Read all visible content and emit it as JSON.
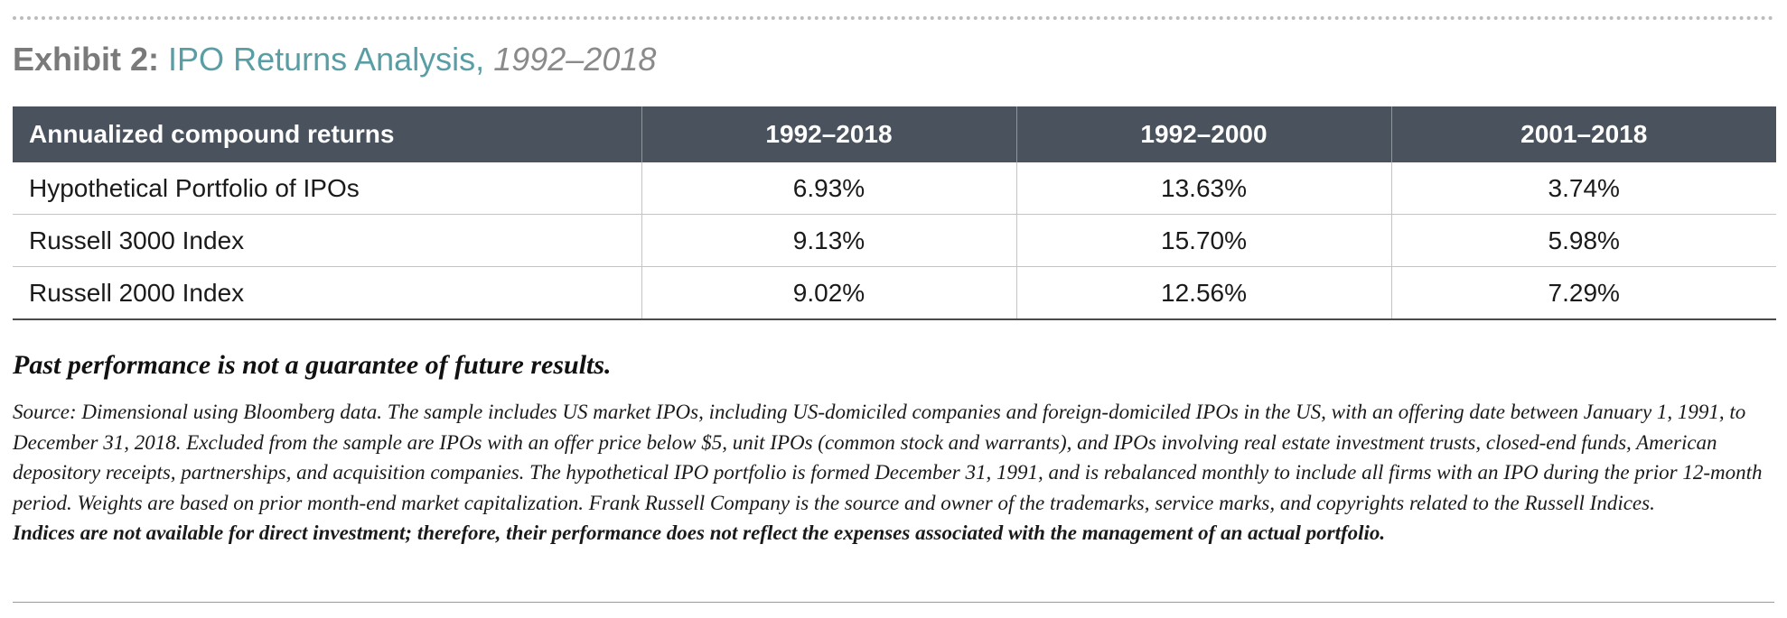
{
  "exhibit": {
    "label": "Exhibit 2:",
    "name": "IPO Returns Analysis,",
    "period": "1992–2018"
  },
  "table": {
    "columns": [
      "Annualized compound returns",
      "1992–2018",
      "1992–2000",
      "2001–2018"
    ],
    "rows": [
      {
        "name": "Hypothetical Portfolio of IPOs",
        "values": [
          "6.93%",
          "13.63%",
          "3.74%"
        ]
      },
      {
        "name": "Russell 3000 Index",
        "values": [
          "9.13%",
          "15.70%",
          "5.98%"
        ]
      },
      {
        "name": "Russell 2000 Index",
        "values": [
          "9.02%",
          "12.56%",
          "7.29%"
        ]
      }
    ]
  },
  "disclaimer": "Past performance is not a guarantee of future results.",
  "source_note": {
    "text": "Source: Dimensional using Bloomberg data. The sample includes US market IPOs, including US-domiciled companies and foreign-domiciled IPOs in the US, with an offering date between January 1, 1991, to December 31, 2018. Excluded from the sample are IPOs with an offer price below $5, unit IPOs (common stock and warrants), and IPOs involving real estate investment trusts, closed-end funds, American depository receipts, partnerships, and acquisition companies. The hypothetical IPO portfolio is formed December 31, 1991, and is rebalanced monthly to include all firms with an IPO during the prior 12-month period. Weights are based on prior month-end market capitalization. Frank Russell Company is the source and owner of the trademarks, service marks, and copyrights related to the Russell Indices.",
    "bold_text": "Indices are not available for direct investment; therefore, their performance does not reflect the expenses associated with the management of an actual portfolio."
  }
}
